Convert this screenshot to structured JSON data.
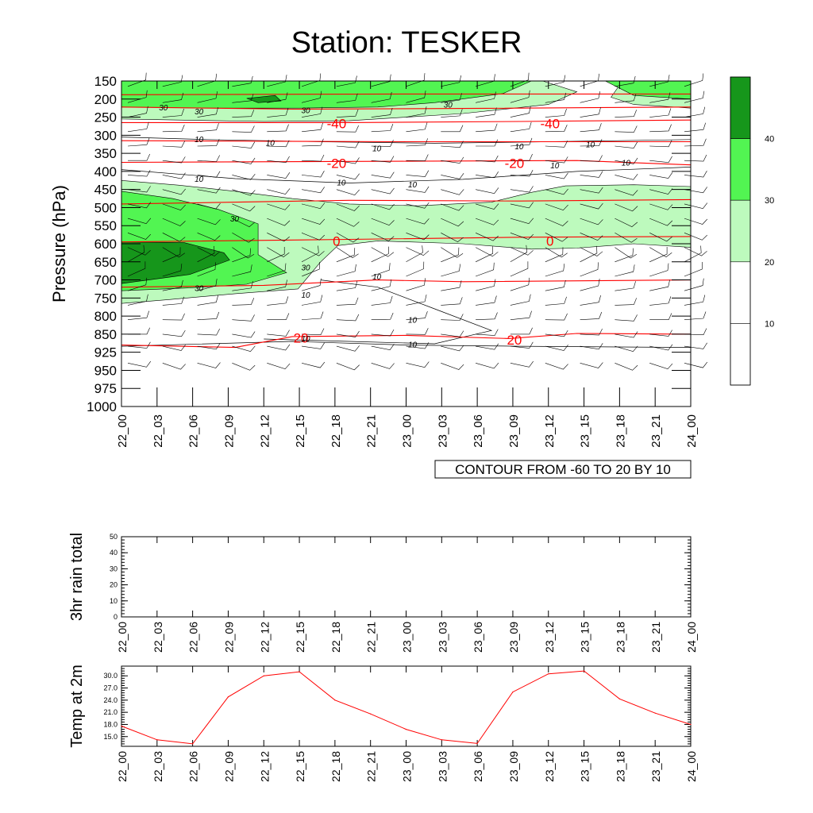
{
  "title": "Station: TESKER",
  "time_labels": [
    "22_00",
    "22_03",
    "22_06",
    "22_09",
    "22_12",
    "22_15",
    "22_18",
    "22_21",
    "23_00",
    "23_03",
    "23_06",
    "23_09",
    "23_12",
    "23_15",
    "23_18",
    "23_21",
    "24_00"
  ],
  "colors": {
    "band_40": "#16961b",
    "band_30": "#52f552",
    "band_20": "#bdfabd",
    "band_10": "#ffffff",
    "temp_contour": "#ff0000",
    "rh_contour": "#000000",
    "wind_barb": "#000000",
    "temp_line": "#ff0000"
  },
  "chart_data": [
    {
      "type": "heatmap",
      "name": "time-height cross section",
      "ylabel": "Pressure (hPa)",
      "y_ticks": [
        150,
        200,
        250,
        300,
        350,
        400,
        450,
        500,
        550,
        600,
        650,
        700,
        750,
        800,
        850,
        925,
        950,
        975,
        1000
      ],
      "x_ticks": [
        "22_00",
        "22_03",
        "22_06",
        "22_09",
        "22_12",
        "22_15",
        "22_18",
        "22_21",
        "23_00",
        "23_03",
        "23_06",
        "23_09",
        "23_12",
        "23_15",
        "23_18",
        "23_21",
        "24_00"
      ],
      "info_label": "CONTOUR FROM -60 TO 20 BY 10",
      "colorbar_labels": [
        "10",
        "20",
        "30",
        "40"
      ],
      "temp_contour_labels": [
        {
          "text": "-40",
          "x": "22_18",
          "y": 265
        },
        {
          "text": "-40",
          "x": "23_12",
          "y": 265
        },
        {
          "text": "-20",
          "x": "22_18",
          "y": 375
        },
        {
          "text": "-20",
          "x": "23_09",
          "y": 375
        },
        {
          "text": "0",
          "x": "22_18",
          "y": 590
        },
        {
          "text": "0",
          "x": "23_12",
          "y": 590
        },
        {
          "text": "20",
          "x": "22_15",
          "y": 862
        },
        {
          "text": "20",
          "x": "23_09",
          "y": 870
        }
      ],
      "rh_contour_labels": [
        {
          "text": "30",
          "x": "22_03",
          "y": 222
        },
        {
          "text": "30",
          "x": "22_06",
          "y": 233
        },
        {
          "text": "30",
          "x": "22_15",
          "y": 230
        },
        {
          "text": "30",
          "x": "23_03",
          "y": 215
        },
        {
          "text": "10",
          "x": "22_06",
          "y": 310
        },
        {
          "text": "10",
          "x": "22_12",
          "y": 320
        },
        {
          "text": "10",
          "x": "22_21",
          "y": 335
        },
        {
          "text": "10",
          "x": "23_09",
          "y": 330
        },
        {
          "text": "10",
          "x": "23_15",
          "y": 325
        },
        {
          "text": "10",
          "x": "23_12",
          "y": 383
        },
        {
          "text": "10",
          "x": "23_18",
          "y": 375
        },
        {
          "text": "10",
          "x": "22_06",
          "y": 420
        },
        {
          "text": "10",
          "x": "22_18",
          "y": 430
        },
        {
          "text": "10",
          "x": "23_00",
          "y": 435
        },
        {
          "text": "30",
          "x": "22_09",
          "y": 530
        },
        {
          "text": "30",
          "x": "22_15",
          "y": 665
        },
        {
          "text": "30",
          "x": "22_06",
          "y": 722
        },
        {
          "text": "10",
          "x": "22_21",
          "y": 690
        },
        {
          "text": "10",
          "x": "22_15",
          "y": 740
        },
        {
          "text": "10",
          "x": "23_00",
          "y": 810
        },
        {
          "text": "10",
          "x": "22_15",
          "y": 867
        },
        {
          "text": "10",
          "x": "23_00",
          "y": 892
        }
      ]
    },
    {
      "type": "line",
      "name": "rain",
      "ylabel": "3hr rain total",
      "categories": [
        "22_00",
        "22_03",
        "22_06",
        "22_09",
        "22_12",
        "22_15",
        "22_18",
        "22_21",
        "23_00",
        "23_03",
        "23_06",
        "23_09",
        "23_12",
        "23_15",
        "23_18",
        "23_21",
        "24_00"
      ],
      "values": [
        0,
        0,
        0,
        0,
        0,
        0,
        0,
        0,
        0,
        0,
        0,
        0,
        0,
        0,
        0,
        0,
        0
      ],
      "ylim": [
        0,
        50
      ],
      "y_ticks": [
        "0",
        "10",
        "20",
        "30",
        "40",
        "50"
      ]
    },
    {
      "type": "line",
      "name": "temperature",
      "ylabel": "Temp at 2m",
      "categories": [
        "22_00",
        "22_03",
        "22_06",
        "22_09",
        "22_12",
        "22_15",
        "22_18",
        "22_21",
        "23_00",
        "23_03",
        "23_06",
        "23_09",
        "23_12",
        "23_15",
        "23_18",
        "23_21",
        "24_00"
      ],
      "values": [
        17.6,
        14.2,
        13.2,
        24.8,
        30.0,
        31.0,
        24.0,
        20.6,
        16.8,
        14.2,
        13.3,
        26.0,
        30.5,
        31.2,
        24.3,
        20.8,
        18.0
      ],
      "ylim": [
        12.6,
        32.4
      ],
      "y_ticks": [
        "15.0",
        "18.0",
        "21.0",
        "24.0",
        "27.0",
        "30.0"
      ]
    }
  ]
}
